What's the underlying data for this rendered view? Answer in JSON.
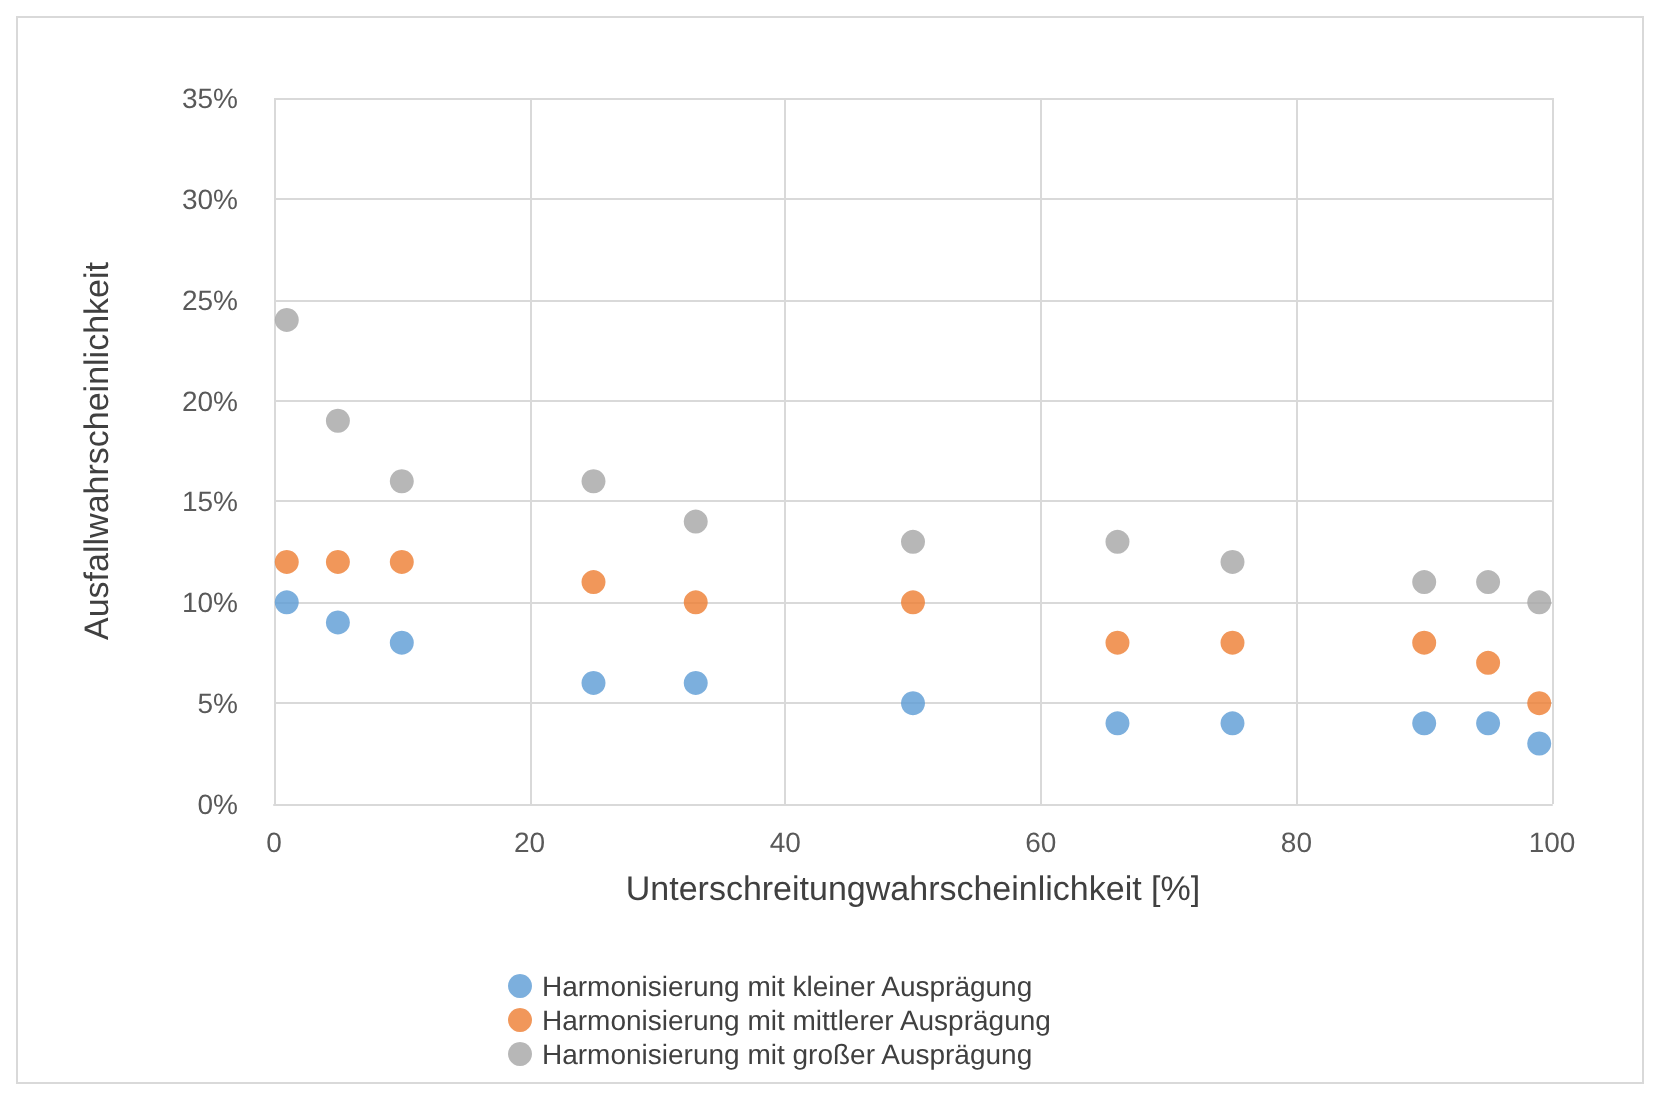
{
  "chart_data": {
    "type": "scatter",
    "xlabel": "Unterschreitungwahrscheinlichkeit [%]",
    "ylabel": "Ausfallwahrscheinlichkeit",
    "x": [
      1,
      5,
      10,
      25,
      33,
      50,
      66,
      75,
      90,
      95,
      99
    ],
    "series": [
      {
        "name": "Harmonisierung mit kleiner Ausprägung",
        "color": "#5b9bd5",
        "values": [
          10,
          9,
          8,
          6,
          6,
          5,
          4,
          4,
          4,
          4,
          3
        ]
      },
      {
        "name": "Harmonisierung mit mittlerer Ausprägung",
        "color": "#ed7d31",
        "values": [
          12,
          12,
          12,
          11,
          10,
          10,
          8,
          8,
          8,
          7,
          5
        ]
      },
      {
        "name": "Harmonisierung mit großer Ausprägung",
        "color": "#a5a5a5",
        "values": [
          24,
          19,
          16,
          16,
          14,
          13,
          13,
          12,
          11,
          11,
          10
        ]
      }
    ],
    "xlim": [
      0,
      100
    ],
    "xticks": [
      0,
      20,
      40,
      60,
      80,
      100
    ],
    "ylim": [
      0,
      35
    ],
    "yticks": [
      {
        "value": 0,
        "label": "0%"
      },
      {
        "value": 5,
        "label": "5%"
      },
      {
        "value": 10,
        "label": "10%"
      },
      {
        "value": 15,
        "label": "15%"
      },
      {
        "value": 20,
        "label": "20%"
      },
      {
        "value": 25,
        "label": "25%"
      },
      {
        "value": 30,
        "label": "30%"
      },
      {
        "value": 35,
        "label": "35%"
      }
    ],
    "grid": true,
    "legend": "bottom",
    "marker": "circle"
  }
}
